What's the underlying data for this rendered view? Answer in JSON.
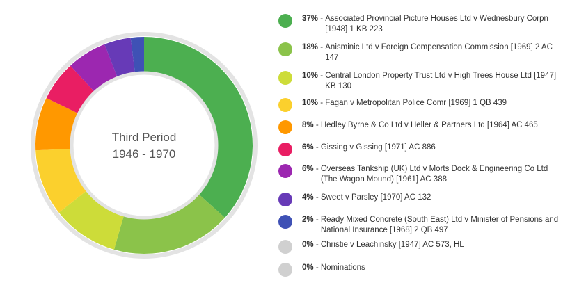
{
  "chart_data": {
    "type": "pie",
    "title": "Third Period",
    "subtitle": "1946 - 1970",
    "legend_position": "right",
    "series": [
      {
        "name": "Associated Provincial Picture Houses Ltd v Wednesbury Corpn [1948] 1 KB 223",
        "pct_label": "37%",
        "value": 37,
        "color": "#4caf50"
      },
      {
        "name": "Anisminic Ltd v Foreign Compensation Commission [1969] 2 AC 147",
        "pct_label": "18%",
        "value": 18,
        "color": "#8bc34a"
      },
      {
        "name": "Central London Property Trust Ltd v High Trees House Ltd [1947] KB 130",
        "pct_label": "10%",
        "value": 10,
        "color": "#cddc39"
      },
      {
        "name": "Fagan v Metropolitan Police Comr [1969] 1 QB 439",
        "pct_label": "10%",
        "value": 10,
        "color": "#fbd02d"
      },
      {
        "name": "Hedley Byrne & Co Ltd v Heller & Partners Ltd [1964] AC 465",
        "pct_label": "8%",
        "value": 8,
        "color": "#ff9800"
      },
      {
        "name": "Gissing v Gissing [1971] AC 886",
        "pct_label": "6%",
        "value": 6,
        "color": "#e91e63"
      },
      {
        "name": "Overseas Tankship (UK) Ltd v Morts Dock & Engineering Co Ltd (The Wagon Mound) [1961] AC 388",
        "pct_label": "6%",
        "value": 6,
        "color": "#9c27b0"
      },
      {
        "name": "Sweet v Parsley [1970] AC 132",
        "pct_label": "4%",
        "value": 4,
        "color": "#673ab7"
      },
      {
        "name": "Ready Mixed Concrete (South East) Ltd v Minister of Pensions and National Insurance [1968] 2 QB 497",
        "pct_label": "2%",
        "value": 2,
        "color": "#3f51b5"
      },
      {
        "name": "Christie v Leachinsky [1947] AC 573, HL",
        "pct_label": "0%",
        "value": 0,
        "color": "#d0d0d0"
      },
      {
        "name": "Nominations",
        "pct_label": "0%",
        "value": 0,
        "color": "#d0d0d0"
      }
    ]
  }
}
